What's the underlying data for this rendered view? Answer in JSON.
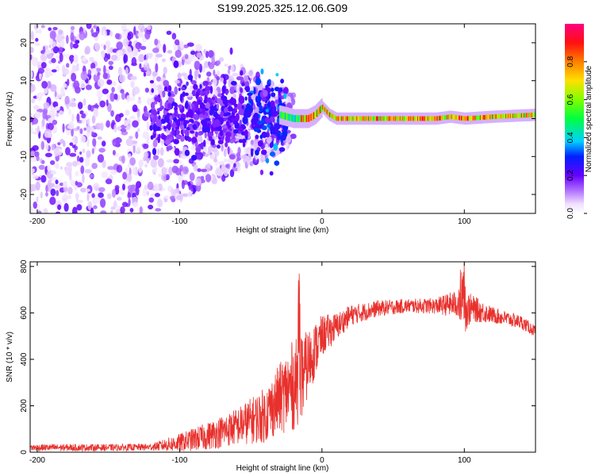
{
  "title": "S199.2025.325.12.06.G09",
  "chart_data": [
    {
      "type": "heatmap",
      "name": "spectrogram",
      "xlabel": "Height of straight line (km)",
      "ylabel": "Frequency (Hz)",
      "xlim": [
        -205,
        150
      ],
      "ylim": [
        -25,
        25
      ],
      "xticks": [
        -200,
        -100,
        0,
        100
      ],
      "yticks": [
        -20,
        -10,
        0,
        10,
        20
      ],
      "colorbar": {
        "label": "Normalized spectral amplitude",
        "range": [
          0,
          1
        ],
        "ticks": [
          0.0,
          0.2,
          0.4,
          0.6,
          0.8
        ]
      },
      "ridge": {
        "description_points_x": [
          -30,
          -20,
          -10,
          -5,
          0,
          5,
          10,
          20,
          50,
          80,
          90,
          100,
          120,
          150
        ],
        "description_points_y": [
          1,
          0,
          0,
          1,
          3,
          1,
          0,
          0,
          0,
          0,
          0.5,
          0,
          0.5,
          1
        ]
      }
    },
    {
      "type": "line",
      "name": "snr",
      "xlabel": "Height of straight line (km)",
      "ylabel": "SNR (10 * v/v)",
      "xlim": [
        -205,
        150
      ],
      "ylim": [
        0,
        820
      ],
      "xticks": [
        -200,
        -100,
        0,
        100
      ],
      "yticks": [
        0,
        200,
        400,
        600,
        800
      ],
      "color": "#e8302c",
      "envelope": {
        "x": [
          -205,
          -150,
          -120,
          -100,
          -80,
          -60,
          -40,
          -30,
          -20,
          -15,
          -10,
          -5,
          0,
          10,
          20,
          40,
          60,
          80,
          95,
          100,
          105,
          120,
          140,
          150
        ],
        "mean": [
          20,
          20,
          22,
          40,
          70,
          110,
          160,
          230,
          290,
          310,
          380,
          440,
          500,
          540,
          590,
          620,
          630,
          630,
          640,
          610,
          620,
          590,
          560,
          520
        ],
        "noise": [
          15,
          15,
          15,
          40,
          60,
          80,
          120,
          150,
          200,
          180,
          150,
          120,
          90,
          60,
          45,
          35,
          30,
          35,
          60,
          100,
          60,
          35,
          30,
          25
        ]
      }
    }
  ]
}
